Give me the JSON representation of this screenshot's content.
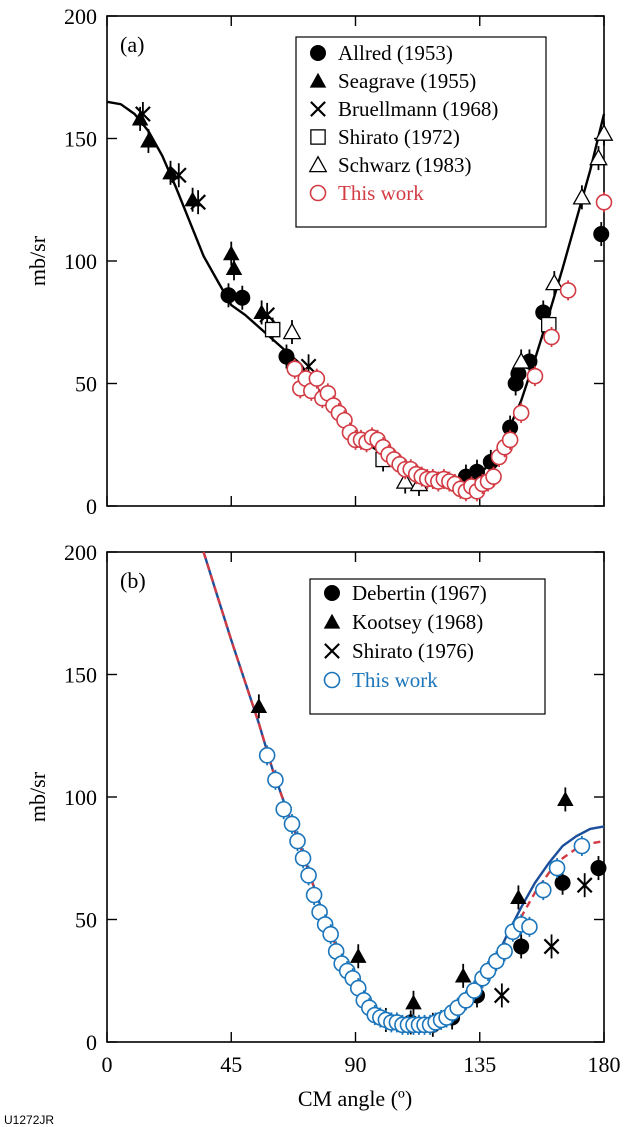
{
  "figure_id": "U1272JR",
  "x_axis_title": "CM angle (º)",
  "chart_data": [
    {
      "type": "scatter",
      "panel_label": "(a)",
      "ylabel": "mb/sr",
      "xlim": [
        0,
        180
      ],
      "ylim": [
        0,
        200
      ],
      "x_ticks": [
        0,
        45,
        90,
        135,
        180
      ],
      "y_ticks": [
        0,
        50,
        100,
        150,
        200
      ],
      "legend_position": "top-right",
      "series": [
        {
          "name": "Allred (1953)",
          "marker": "filled-circle",
          "color": "#000000",
          "x": [
            44,
            49,
            65,
            130,
            134,
            139,
            146,
            148,
            149,
            153,
            158,
            179
          ],
          "y": [
            86,
            85,
            61,
            12,
            14,
            18,
            32,
            50,
            54,
            59,
            79,
            111
          ]
        },
        {
          "name": "Seagrave (1955)",
          "marker": "filled-triangle",
          "color": "#000000",
          "x": [
            12,
            15,
            23,
            31,
            45,
            46,
            56
          ],
          "y": [
            158,
            149,
            136,
            125,
            103,
            97,
            79
          ]
        },
        {
          "name": "Bruellmann (1968)",
          "marker": "cross",
          "color": "#000000",
          "x": [
            13,
            26,
            33,
            58,
            73
          ],
          "y": [
            160,
            135,
            124,
            78,
            57
          ]
        },
        {
          "name": "Shirato (1972)",
          "marker": "open-square",
          "color": "#000000",
          "x": [
            60,
            100,
            160
          ],
          "y": [
            72,
            19,
            74
          ]
        },
        {
          "name": "Schwarz (1983)",
          "marker": "open-triangle",
          "color": "#000000",
          "x": [
            67,
            108,
            113,
            150,
            162,
            172,
            178,
            180
          ],
          "y": [
            71,
            10,
            9,
            59,
            91,
            126,
            142,
            152
          ]
        },
        {
          "name": "This work",
          "marker": "open-circle",
          "color": "#d33b44",
          "x": [
            68,
            70,
            72,
            74,
            76,
            78,
            80,
            82,
            84,
            86,
            88,
            90,
            92,
            94,
            96,
            98,
            100,
            102,
            104,
            106,
            108,
            110,
            112,
            114,
            116,
            118,
            120,
            122,
            124,
            126,
            128,
            130,
            132,
            134,
            136,
            138,
            140,
            142,
            144,
            146,
            150,
            155,
            161,
            167,
            180
          ],
          "y": [
            56,
            48,
            52,
            47,
            52,
            44,
            46,
            41,
            38,
            35,
            30,
            27,
            27,
            26,
            28,
            27,
            24,
            21,
            19,
            17,
            15,
            15,
            13,
            12,
            11,
            11,
            10,
            11,
            10,
            9,
            7,
            6,
            8,
            6,
            9,
            10,
            12,
            20,
            24,
            27,
            38,
            53,
            69,
            88,
            124
          ]
        },
        {
          "name": "",
          "type": "line",
          "color": "#000000",
          "x": [
            0,
            5,
            10,
            15,
            20,
            25,
            30,
            35,
            40,
            45,
            50,
            55,
            60,
            65,
            70,
            75,
            80,
            85,
            90,
            95,
            100,
            105,
            110,
            115,
            120,
            125,
            130,
            135,
            140,
            145,
            150,
            155,
            160,
            165,
            170,
            175,
            180
          ],
          "y": [
            165,
            164,
            160,
            153,
            143,
            130,
            116,
            102,
            92,
            82,
            78,
            73,
            68,
            63,
            58,
            50,
            42,
            35,
            29,
            25,
            21,
            17,
            14,
            11,
            9,
            8,
            8,
            13,
            19,
            30,
            43,
            60,
            78,
            97,
            117,
            137,
            160
          ]
        }
      ]
    },
    {
      "type": "scatter",
      "panel_label": "(b)",
      "ylabel": "mb/sr",
      "xlim": [
        0,
        180
      ],
      "ylim": [
        0,
        200
      ],
      "x_ticks": [
        0,
        45,
        90,
        135,
        180
      ],
      "y_ticks": [
        0,
        50,
        100,
        150,
        200
      ],
      "legend_position": "top-right",
      "series": [
        {
          "name": "Debertin (1967)",
          "marker": "filled-circle",
          "color": "#000000",
          "x": [
            101,
            110,
            118,
            125,
            134,
            150,
            165,
            178
          ],
          "y": [
            9,
            8,
            7,
            10,
            19,
            39,
            65,
            71
          ]
        },
        {
          "name": "Kootsey (1968)",
          "marker": "filled-triangle",
          "color": "#000000",
          "x": [
            55,
            91,
            111,
            129,
            149,
            166
          ],
          "y": [
            137,
            35,
            16,
            27,
            59,
            99
          ]
        },
        {
          "name": "Shirato (1976)",
          "marker": "cross",
          "color": "#000000",
          "x": [
            143,
            161,
            173
          ],
          "y": [
            19,
            39,
            64
          ]
        },
        {
          "name": "This work",
          "marker": "open-circle",
          "color": "#1b75bb",
          "x": [
            58,
            61,
            64,
            67,
            69,
            71,
            73,
            75,
            77,
            79,
            81,
            83,
            85,
            87,
            89,
            91,
            93,
            95,
            97,
            99,
            101,
            103,
            105,
            107,
            109,
            111,
            113,
            115,
            117,
            119,
            121,
            123,
            125,
            127,
            130,
            133,
            136,
            138,
            141,
            144,
            147,
            150,
            153,
            158,
            163,
            172
          ],
          "y": [
            117,
            107,
            95,
            89,
            82,
            75,
            68,
            60,
            53,
            48,
            44,
            37,
            32,
            29,
            26,
            22,
            17,
            14,
            11,
            10,
            9,
            8,
            8,
            7,
            7,
            7,
            7,
            7,
            7,
            8,
            9,
            10,
            12,
            14,
            17,
            21,
            26,
            29,
            33,
            37,
            45,
            48,
            47,
            62,
            71,
            80
          ]
        },
        {
          "name": "",
          "type": "line",
          "color": "#1b4f9c",
          "style": "solid",
          "x": [
            35,
            40,
            45,
            50,
            55,
            60,
            65,
            70,
            75,
            80,
            85,
            90,
            95,
            100,
            105,
            110,
            115,
            120,
            125,
            130,
            135,
            140,
            145,
            150,
            155,
            160,
            165,
            170,
            175,
            180
          ],
          "y": [
            204,
            182,
            164,
            147,
            130,
            111,
            95,
            80,
            63,
            47,
            34,
            23,
            15,
            10,
            8,
            7,
            7,
            8,
            10,
            14,
            21,
            32,
            44,
            55,
            65,
            73,
            80,
            84,
            87,
            88
          ]
        },
        {
          "name": "",
          "type": "line",
          "color": "#d33b44",
          "style": "dashed",
          "x": [
            35,
            40,
            45,
            50,
            55,
            60,
            65,
            70,
            75,
            80,
            85,
            90,
            95,
            100,
            105,
            110,
            115,
            120,
            125,
            130,
            135,
            140,
            145,
            150,
            155,
            160,
            165,
            170,
            175,
            180
          ],
          "y": [
            204,
            182,
            164,
            147,
            130,
            111,
            95,
            80,
            63,
            47,
            34,
            23,
            15,
            10,
            8,
            7,
            7,
            8,
            10,
            14,
            21,
            31,
            41,
            51,
            61,
            69,
            75,
            79,
            81,
            82
          ]
        }
      ]
    }
  ]
}
